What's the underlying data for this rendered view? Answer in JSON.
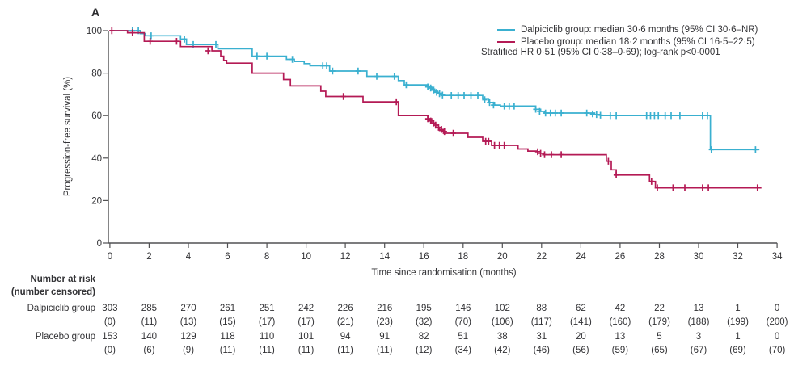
{
  "panel_label": "A",
  "chart_data": {
    "type": "line",
    "subtype": "kaplan_meier_step",
    "title": "",
    "x_axis": {
      "label": "Time since randomisation (months)",
      "min": 0,
      "max": 34,
      "ticks": [
        0,
        2,
        4,
        6,
        8,
        10,
        12,
        14,
        16,
        18,
        20,
        22,
        24,
        26,
        28,
        30,
        32,
        34
      ]
    },
    "y_axis": {
      "label": "Progression-free survival (%)",
      "min": 0,
      "max": 100,
      "ticks": [
        0,
        20,
        40,
        60,
        80,
        100
      ]
    },
    "legend": {
      "entries": [
        {
          "label": "Dalpiciclib group: median 30·6 months (95% CI 30·6–NR)",
          "color": "#3AB0D0"
        },
        {
          "label": "Placebo group: median 18·2 months (95% CI 16·5–22·5)",
          "color": "#B41A55"
        }
      ],
      "note": "Stratified HR 0·51 (95% CI 0·38–0·69); log-rank p<0·0001"
    },
    "series": [
      {
        "name": "Dalpiciclib group",
        "color": "#3AB0D0",
        "end_month": 33.1,
        "steps": [
          [
            0,
            100
          ],
          [
            1.55,
            98.6
          ],
          [
            1.8,
            97.6
          ],
          [
            3.6,
            96
          ],
          [
            3.9,
            93.5
          ],
          [
            5.5,
            91.5
          ],
          [
            7.25,
            88
          ],
          [
            9.0,
            86.5
          ],
          [
            9.4,
            85.5
          ],
          [
            9.9,
            84.5
          ],
          [
            10.2,
            83.5
          ],
          [
            11.2,
            81
          ],
          [
            13.1,
            78.5
          ],
          [
            14.7,
            76.5
          ],
          [
            15.0,
            74.5
          ],
          [
            16.2,
            73.5
          ],
          [
            16.4,
            72.5
          ],
          [
            16.55,
            71.5
          ],
          [
            16.7,
            70.5
          ],
          [
            16.9,
            69.5
          ],
          [
            19.0,
            68
          ],
          [
            19.3,
            66.2
          ],
          [
            19.6,
            65
          ],
          [
            19.9,
            64.5
          ],
          [
            21.7,
            63
          ],
          [
            21.95,
            62
          ],
          [
            22.15,
            61.2
          ],
          [
            24.7,
            60.5
          ],
          [
            25.0,
            60
          ],
          [
            30.6,
            44
          ]
        ],
        "censor_marks": [
          [
            1.15,
            100
          ],
          [
            1.45,
            100
          ],
          [
            2.1,
            97.6
          ],
          [
            3.8,
            96
          ],
          [
            4.25,
            93.5
          ],
          [
            5.4,
            93.5
          ],
          [
            7.5,
            88
          ],
          [
            8.0,
            88
          ],
          [
            9.3,
            86.5
          ],
          [
            10.85,
            83.5
          ],
          [
            11.05,
            83.5
          ],
          [
            11.35,
            81
          ],
          [
            12.65,
            81
          ],
          [
            13.6,
            78.5
          ],
          [
            14.5,
            78.5
          ],
          [
            15.1,
            74.5
          ],
          [
            16.2,
            73.5
          ],
          [
            16.35,
            73
          ],
          [
            16.5,
            72
          ],
          [
            16.65,
            71
          ],
          [
            16.8,
            70.3
          ],
          [
            16.95,
            69.7
          ],
          [
            17.4,
            69.5
          ],
          [
            17.75,
            69.5
          ],
          [
            18.05,
            69.5
          ],
          [
            18.4,
            69.5
          ],
          [
            18.75,
            69.5
          ],
          [
            19.1,
            67.5
          ],
          [
            19.35,
            66.2
          ],
          [
            19.55,
            65
          ],
          [
            20.1,
            64.5
          ],
          [
            20.35,
            64.5
          ],
          [
            20.6,
            64.5
          ],
          [
            21.7,
            63
          ],
          [
            21.9,
            62
          ],
          [
            22.2,
            61.2
          ],
          [
            22.45,
            61.2
          ],
          [
            22.7,
            61.2
          ],
          [
            23.0,
            61.2
          ],
          [
            24.3,
            61.2
          ],
          [
            24.6,
            60.8
          ],
          [
            24.8,
            60.5
          ],
          [
            25.0,
            60.2
          ],
          [
            25.5,
            60
          ],
          [
            25.8,
            60
          ],
          [
            27.35,
            60
          ],
          [
            27.55,
            60
          ],
          [
            27.75,
            60
          ],
          [
            27.95,
            60
          ],
          [
            28.3,
            60
          ],
          [
            28.6,
            60
          ],
          [
            29.05,
            60
          ],
          [
            30.2,
            60
          ],
          [
            30.45,
            60
          ],
          [
            30.65,
            44
          ],
          [
            32.9,
            44
          ]
        ]
      },
      {
        "name": "Placebo group",
        "color": "#B41A55",
        "end_month": 33.2,
        "steps": [
          [
            0,
            100
          ],
          [
            0.9,
            99
          ],
          [
            1.75,
            95
          ],
          [
            3.6,
            92.5
          ],
          [
            5.2,
            90.5
          ],
          [
            5.65,
            88
          ],
          [
            5.8,
            86
          ],
          [
            5.95,
            84.7
          ],
          [
            7.25,
            80
          ],
          [
            8.85,
            77
          ],
          [
            9.2,
            74
          ],
          [
            10.75,
            71.5
          ],
          [
            11.0,
            69
          ],
          [
            12.9,
            66.5
          ],
          [
            14.7,
            60
          ],
          [
            16.2,
            58.5
          ],
          [
            16.4,
            56.5
          ],
          [
            16.6,
            54.5
          ],
          [
            16.8,
            53
          ],
          [
            17.0,
            51.7
          ],
          [
            18.25,
            49.8
          ],
          [
            19.0,
            47.9
          ],
          [
            19.45,
            46
          ],
          [
            20.8,
            44.3
          ],
          [
            21.3,
            43.3
          ],
          [
            21.8,
            42.3
          ],
          [
            22.1,
            41.6
          ],
          [
            25.3,
            38.5
          ],
          [
            25.55,
            34.5
          ],
          [
            25.8,
            32
          ],
          [
            27.5,
            29
          ],
          [
            27.8,
            26
          ]
        ],
        "censor_marks": [
          [
            0.1,
            100
          ],
          [
            1.15,
            99
          ],
          [
            2.05,
            95
          ],
          [
            3.4,
            95
          ],
          [
            5.0,
            90.5
          ],
          [
            11.9,
            69
          ],
          [
            14.6,
            66.5
          ],
          [
            16.2,
            58.5
          ],
          [
            16.35,
            57.5
          ],
          [
            16.5,
            56.5
          ],
          [
            16.6,
            55.5
          ],
          [
            16.75,
            54.5
          ],
          [
            16.9,
            53.5
          ],
          [
            17.05,
            52.5
          ],
          [
            17.5,
            51.7
          ],
          [
            19.15,
            47.9
          ],
          [
            19.3,
            47.9
          ],
          [
            19.6,
            46
          ],
          [
            19.85,
            46
          ],
          [
            20.1,
            46
          ],
          [
            21.8,
            43
          ],
          [
            21.95,
            42.3
          ],
          [
            22.15,
            41.6
          ],
          [
            22.5,
            41.6
          ],
          [
            23.0,
            41.6
          ],
          [
            25.4,
            38.5
          ],
          [
            25.8,
            32
          ],
          [
            27.6,
            29
          ],
          [
            27.9,
            26
          ],
          [
            28.7,
            26
          ],
          [
            29.3,
            26
          ],
          [
            30.2,
            26
          ],
          [
            30.5,
            26
          ],
          [
            33.0,
            26
          ]
        ]
      }
    ]
  },
  "risk_table": {
    "header_line1": "Number at risk",
    "header_line2": "(number censored)",
    "columns_months": [
      0,
      2,
      4,
      6,
      8,
      10,
      12,
      14,
      16,
      18,
      20,
      22,
      24,
      26,
      28,
      30,
      32,
      34
    ],
    "rows": [
      {
        "label": "Dalpiciclib group",
        "at_risk": [
          "303",
          "285",
          "270",
          "261",
          "251",
          "242",
          "226",
          "216",
          "195",
          "146",
          "102",
          "88",
          "62",
          "42",
          "22",
          "13",
          "1",
          "0"
        ],
        "censored": [
          "(0)",
          "(11)",
          "(13)",
          "(15)",
          "(17)",
          "(17)",
          "(21)",
          "(23)",
          "(32)",
          "(70)",
          "(106)",
          "(117)",
          "(141)",
          "(160)",
          "(179)",
          "(188)",
          "(199)",
          "(200)"
        ]
      },
      {
        "label": "Placebo group",
        "at_risk": [
          "153",
          "140",
          "129",
          "118",
          "110",
          "101",
          "94",
          "91",
          "82",
          "51",
          "38",
          "31",
          "20",
          "13",
          "5",
          "3",
          "1",
          "0"
        ],
        "censored": [
          "(0)",
          "(6)",
          "(9)",
          "(11)",
          "(11)",
          "(11)",
          "(11)",
          "(11)",
          "(12)",
          "(34)",
          "(42)",
          "(46)",
          "(56)",
          "(59)",
          "(65)",
          "(67)",
          "(69)",
          "(70)"
        ]
      }
    ]
  }
}
